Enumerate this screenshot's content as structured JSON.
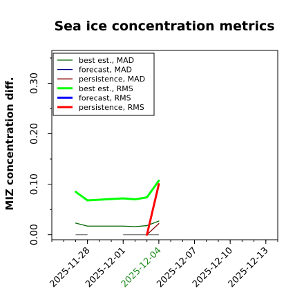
{
  "chart_data": {
    "type": "line",
    "title": "Sea ice concentration metrics",
    "xlabel": "",
    "ylabel": "MIZ concentration diff.",
    "x_ticks": [
      "2025-11-28",
      "2025-12-01",
      "2025-12-04",
      "2025-12-07",
      "2025-12-10",
      "2025-12-13"
    ],
    "highlight_tick": "2025-12-04",
    "highlight_color": "#228B22",
    "xlim": [
      "2025-11-25",
      "2025-12-14"
    ],
    "ylim": [
      -0.01,
      0.365
    ],
    "y_ticks": [
      0.0,
      0.1,
      0.2,
      0.3
    ],
    "y_tick_labels": [
      "0.00",
      "0.10",
      "0.20",
      "0.30"
    ],
    "legend_position": "top-left",
    "grid": false,
    "series": [
      {
        "name": "best est., MAD",
        "color": "#006400",
        "width": 1.3,
        "x": [
          "2025-11-27",
          "2025-11-28",
          "2025-12-01",
          "2025-12-02",
          "2025-12-03",
          "2025-12-04"
        ],
        "y": [
          0.023,
          0.017,
          0.017,
          0.016,
          0.018,
          0.027
        ]
      },
      {
        "name": "forecast,  MAD",
        "color": "#00008B",
        "width": 1.3,
        "x": [],
        "y": []
      },
      {
        "name": "persistence, MAD",
        "color": "#8B0000",
        "width": 1.3,
        "x": [
          "2025-12-03",
          "2025-12-04"
        ],
        "y": [
          0.0,
          0.022
        ]
      },
      {
        "name": "best est., RMS",
        "color": "#00FF00",
        "width": 3,
        "x": [
          "2025-11-27",
          "2025-11-28",
          "2025-12-01",
          "2025-12-02",
          "2025-12-03",
          "2025-12-04"
        ],
        "y": [
          0.085,
          0.068,
          0.072,
          0.07,
          0.074,
          0.107
        ]
      },
      {
        "name": "forecast,  RMS",
        "color": "#0000FF",
        "width": 3,
        "x": [],
        "y": []
      },
      {
        "name": "persistence, RMS",
        "color": "#FF0000",
        "width": 3,
        "x": [
          "2025-12-03",
          "2025-12-04"
        ],
        "y": [
          0.0,
          0.1
        ]
      }
    ],
    "baseline_segments": [
      {
        "color": "#808080",
        "x": [
          "2025-11-27",
          "2025-11-28"
        ],
        "y": [
          0.0,
          0.0
        ]
      },
      {
        "color": "#808080",
        "x": [
          "2025-12-01",
          "2025-12-04"
        ],
        "y": [
          0.0,
          0.0
        ]
      }
    ]
  }
}
